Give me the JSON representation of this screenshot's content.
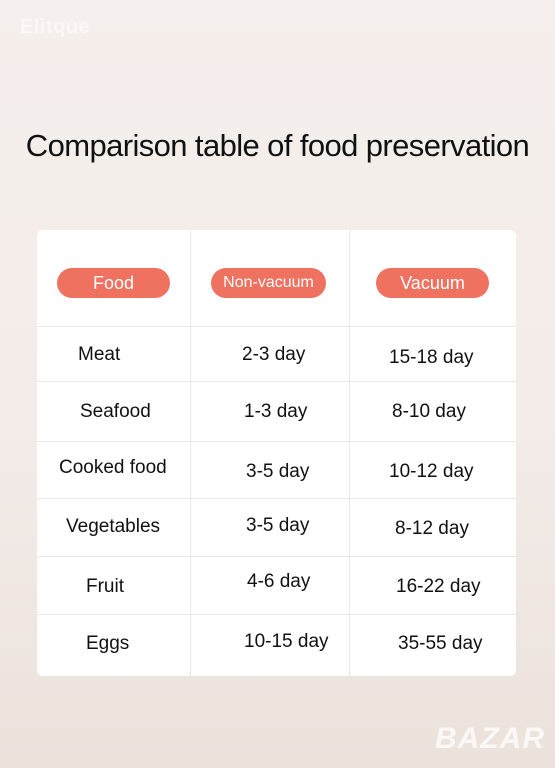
{
  "watermark": {
    "top": "Elitque",
    "bottom": "BAZAR"
  },
  "title": "Comparison table of food preservation",
  "colors": {
    "pill": "#ef7260",
    "card": "#ffffff",
    "text": "#111111"
  },
  "table": {
    "headers": [
      "Food",
      "Non-vacuum",
      "Vacuum"
    ],
    "rows": [
      {
        "food": "Meat",
        "non_vacuum": "2-3 day",
        "vacuum": "15-18 day"
      },
      {
        "food": "Seafood",
        "non_vacuum": "1-3 day",
        "vacuum": "8-10 day"
      },
      {
        "food": "Cooked food",
        "non_vacuum": "3-5 day",
        "vacuum": "10-12 day"
      },
      {
        "food": "Vegetables",
        "non_vacuum": "3-5 day",
        "vacuum": "8-12 day"
      },
      {
        "food": "Fruit",
        "non_vacuum": "4-6 day",
        "vacuum": "16-22 day"
      },
      {
        "food": "Eggs",
        "non_vacuum": "10-15 day",
        "vacuum": "35-55 day"
      }
    ]
  }
}
